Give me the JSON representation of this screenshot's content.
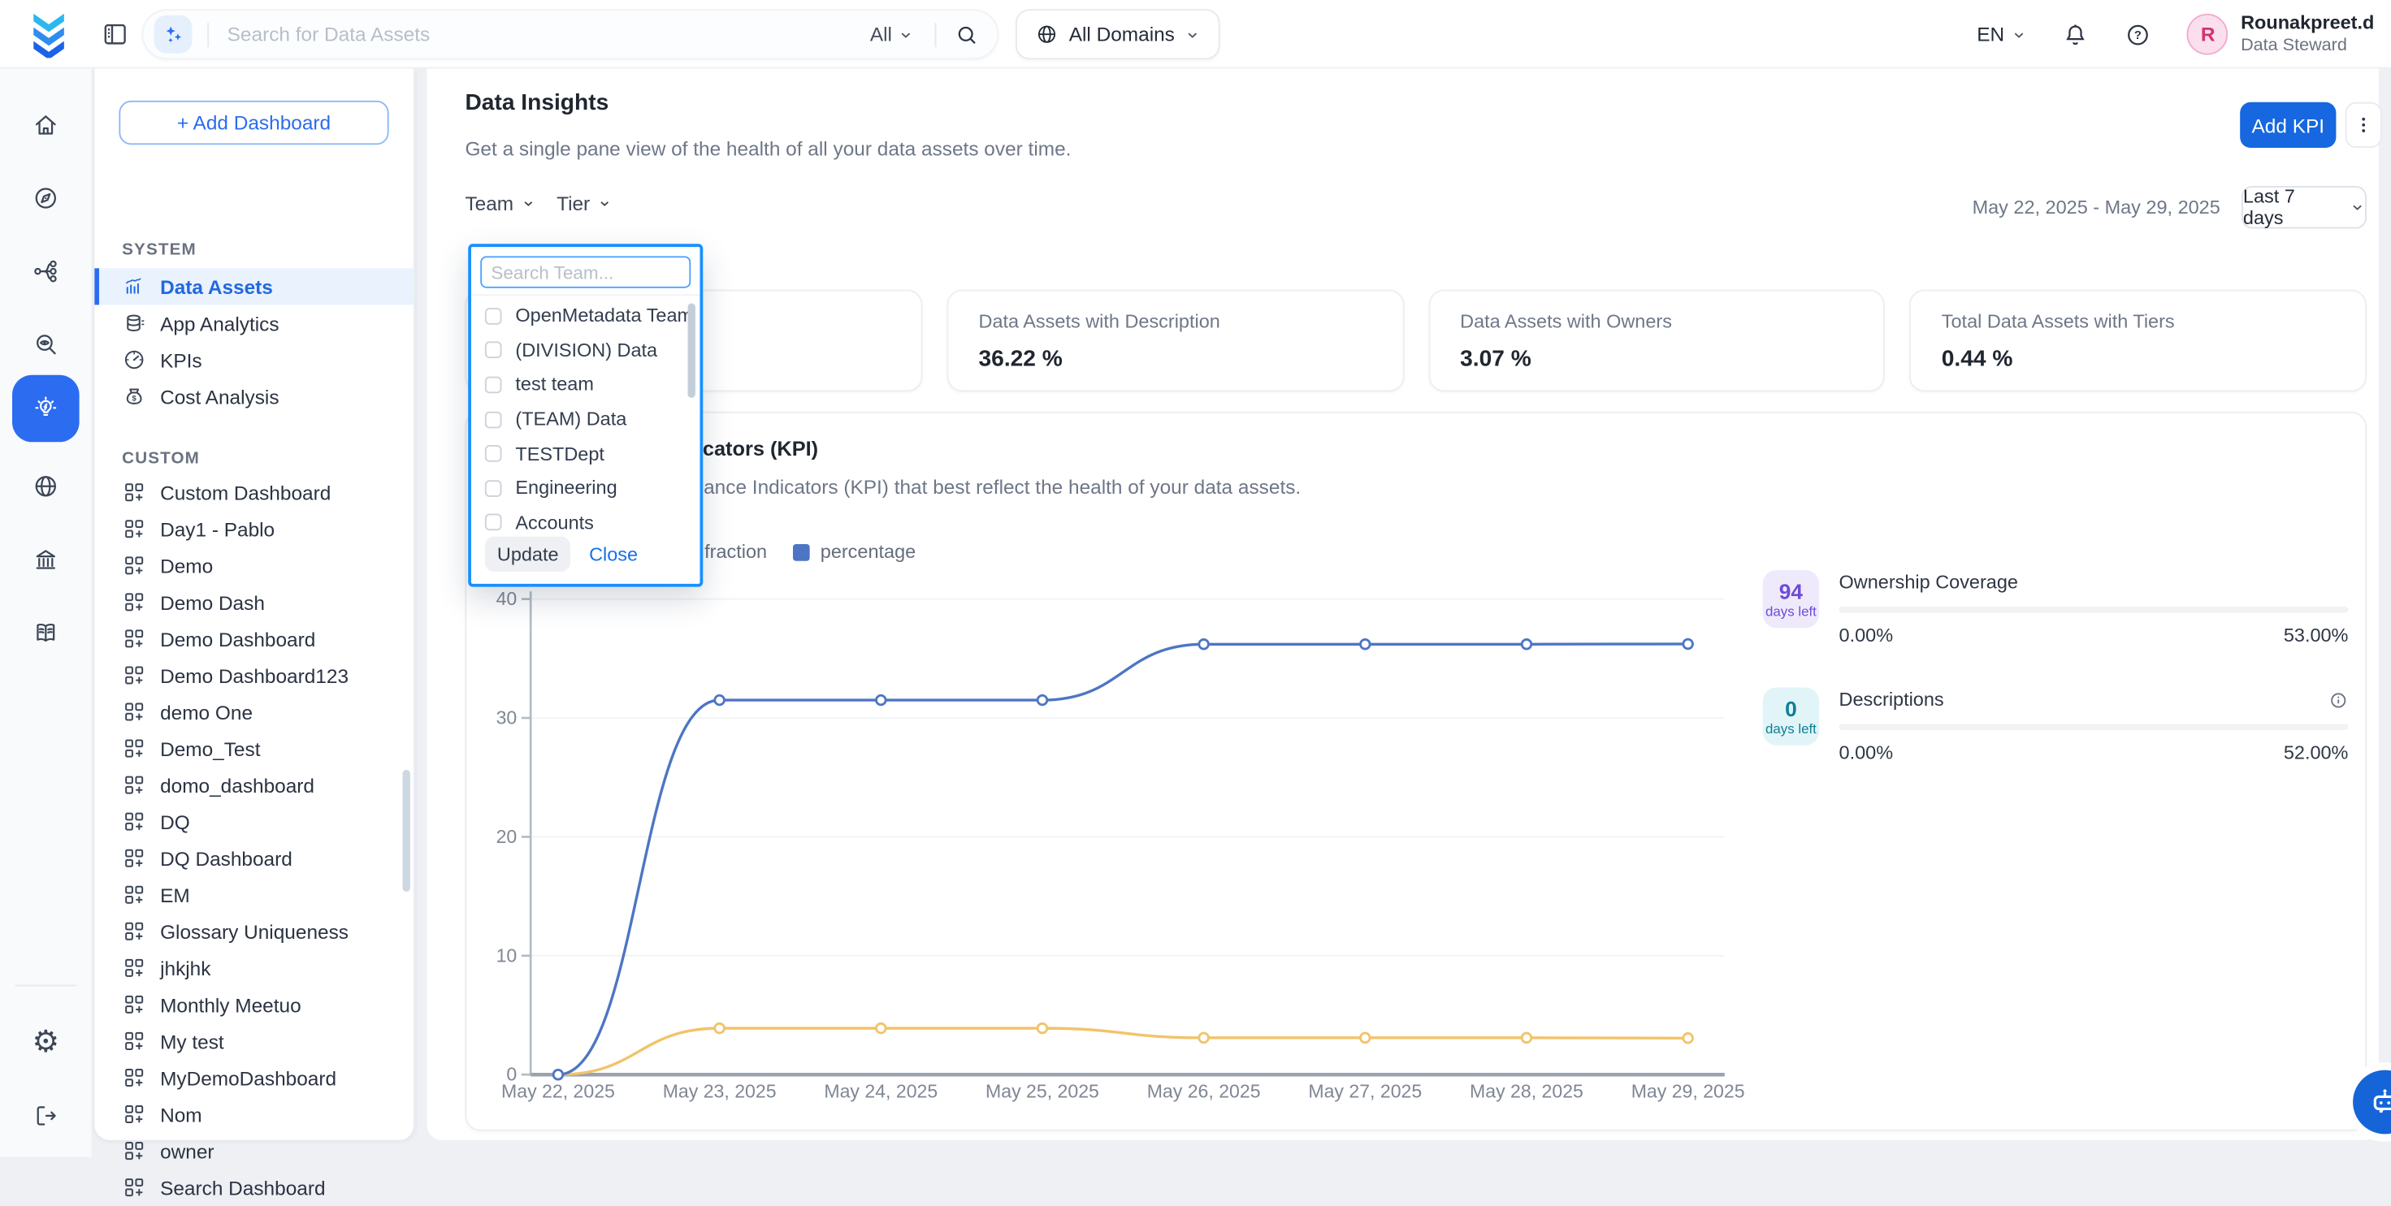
{
  "colors": {
    "accent": "#1667e0",
    "accent_bright": "#2b6cf0",
    "popup_border": "#1890ff",
    "sidebar_active_bg": "#e9f2fd",
    "line_percentage": "#4e75c4",
    "line_fraction": "#f2c36a",
    "badge_purple_bg": "#efeafb",
    "badge_purple_fg": "#6f4bd8",
    "badge_teal_bg": "#e1f5f8",
    "badge_teal_fg": "#0e7e95"
  },
  "icon_glyphs": {
    "settings-icon": "⚙",
    "kebab-icon": "⋮"
  },
  "header": {
    "search": {
      "placeholder": "Search for Data Assets",
      "scope_label": "All",
      "domains_label": "All Domains"
    },
    "language": "EN",
    "user": {
      "initial": "R",
      "name": "Rounakpreet.d",
      "role": "Data Steward"
    }
  },
  "rail": {
    "items": [
      {
        "icon": "home-icon"
      },
      {
        "icon": "explore-icon"
      },
      {
        "icon": "lineage-icon"
      },
      {
        "icon": "observability-icon"
      },
      {
        "icon": "insights-icon",
        "active": true
      },
      {
        "icon": "domains-icon"
      },
      {
        "icon": "governance-icon"
      },
      {
        "icon": "knowledge-center-icon"
      }
    ],
    "bottom_items": [
      {
        "icon": "settings-icon"
      },
      {
        "icon": "logout-icon"
      }
    ]
  },
  "sidebar": {
    "add_button": "+ Add Dashboard",
    "system": {
      "title": "SYSTEM",
      "items": [
        {
          "label": "Data Assets",
          "icon": "data-assets-icon",
          "active": true
        },
        {
          "label": "App Analytics",
          "icon": "app-analytics-icon"
        },
        {
          "label": "KPIs",
          "icon": "kpi-gauge-icon"
        },
        {
          "label": "Cost Analysis",
          "icon": "cost-analysis-icon"
        }
      ]
    },
    "custom": {
      "title": "CUSTOM",
      "items": [
        {
          "label": "Custom Dashboard",
          "icon": "dashboard-grid-icon"
        },
        {
          "label": "Day1 - Pablo",
          "icon": "dashboard-grid-icon"
        },
        {
          "label": "Demo",
          "icon": "dashboard-grid-icon"
        },
        {
          "label": "Demo Dash",
          "icon": "dashboard-grid-icon"
        },
        {
          "label": "Demo Dashboard",
          "icon": "dashboard-grid-icon"
        },
        {
          "label": "Demo Dashboard123",
          "icon": "dashboard-grid-icon"
        },
        {
          "label": "demo One",
          "icon": "dashboard-grid-icon"
        },
        {
          "label": "Demo_Test",
          "icon": "dashboard-grid-icon"
        },
        {
          "label": "domo_dashboard",
          "icon": "dashboard-grid-icon"
        },
        {
          "label": "DQ",
          "icon": "dashboard-grid-icon"
        },
        {
          "label": "DQ Dashboard",
          "icon": "dashboard-grid-icon"
        },
        {
          "label": "EM",
          "icon": "dashboard-grid-icon"
        },
        {
          "label": "Glossary Uniqueness",
          "icon": "dashboard-grid-icon"
        },
        {
          "label": "jhkjhk",
          "icon": "dashboard-grid-icon"
        },
        {
          "label": "Monthly Meetuo",
          "icon": "dashboard-grid-icon"
        },
        {
          "label": "My test",
          "icon": "dashboard-grid-icon"
        },
        {
          "label": "MyDemoDashboard",
          "icon": "dashboard-grid-icon"
        },
        {
          "label": "Nom",
          "icon": "dashboard-grid-icon"
        },
        {
          "label": "owner",
          "icon": "dashboard-grid-icon"
        },
        {
          "label": "Search Dashboard",
          "icon": "dashboard-grid-icon"
        }
      ]
    }
  },
  "page": {
    "title": "Data Insights",
    "subtitle": "Get a single pane view of the health of all your data assets over time.",
    "add_kpi_label": "Add KPI",
    "team_filter": "Team",
    "tier_filter": "Tier",
    "date_range": "May 22, 2025 - May 29, 2025",
    "range_label": "Last 7 days"
  },
  "team_dropdown": {
    "search_placeholder": "Search Team...",
    "options": [
      "OpenMetadata Team",
      "(DIVISION) Data",
      "test team",
      "(TEAM) Data",
      "TESTDept",
      "Engineering",
      "Accounts"
    ],
    "update_label": "Update",
    "close_label": "Close"
  },
  "summary_cards": [
    {
      "label": "",
      "value": ""
    },
    {
      "label": "Data Assets with Description",
      "value": "36.22 %"
    },
    {
      "label": "Data Assets with Owners",
      "value": "3.07 %"
    },
    {
      "label": "Total Data Assets with Tiers",
      "value": "0.44 %"
    }
  ],
  "kpi_section": {
    "title": "Key Performance Indicators (KPI)",
    "subtitle": "Identify the Key Performance Indicators (KPI) that best reflect the health of your data assets."
  },
  "chart_data": {
    "type": "line",
    "x": [
      "May 22, 2025",
      "May 23, 2025",
      "May 24, 2025",
      "May 25, 2025",
      "May 26, 2025",
      "May 27, 2025",
      "May 28, 2025",
      "May 29, 2025"
    ],
    "series": [
      {
        "name": "fraction",
        "color": "#f2c36a",
        "values": [
          0,
          3.9,
          3.9,
          3.9,
          3.1,
          3.1,
          3.1,
          3.07
        ]
      },
      {
        "name": "percentage",
        "color": "#4e75c4",
        "values": [
          0,
          31.5,
          31.5,
          31.5,
          36.2,
          36.2,
          36.2,
          36.22
        ]
      }
    ],
    "ylim": [
      0,
      40
    ],
    "yticks": [
      0,
      10,
      20,
      30,
      40
    ],
    "grid": true,
    "legend_position": "top-left"
  },
  "kpi_panel": [
    {
      "days": "94",
      "days_label": "days left",
      "title": "Ownership Coverage",
      "start": "0.00%",
      "end": "53.00%",
      "badge_bg": "#efeafb",
      "badge_color": "#6f4bd8",
      "has_info": false
    },
    {
      "days": "0",
      "days_label": "days left",
      "title": "Descriptions",
      "start": "0.00%",
      "end": "52.00%",
      "badge_bg": "#e1f5f8",
      "badge_color": "#0e7e95",
      "has_info": true
    }
  ]
}
